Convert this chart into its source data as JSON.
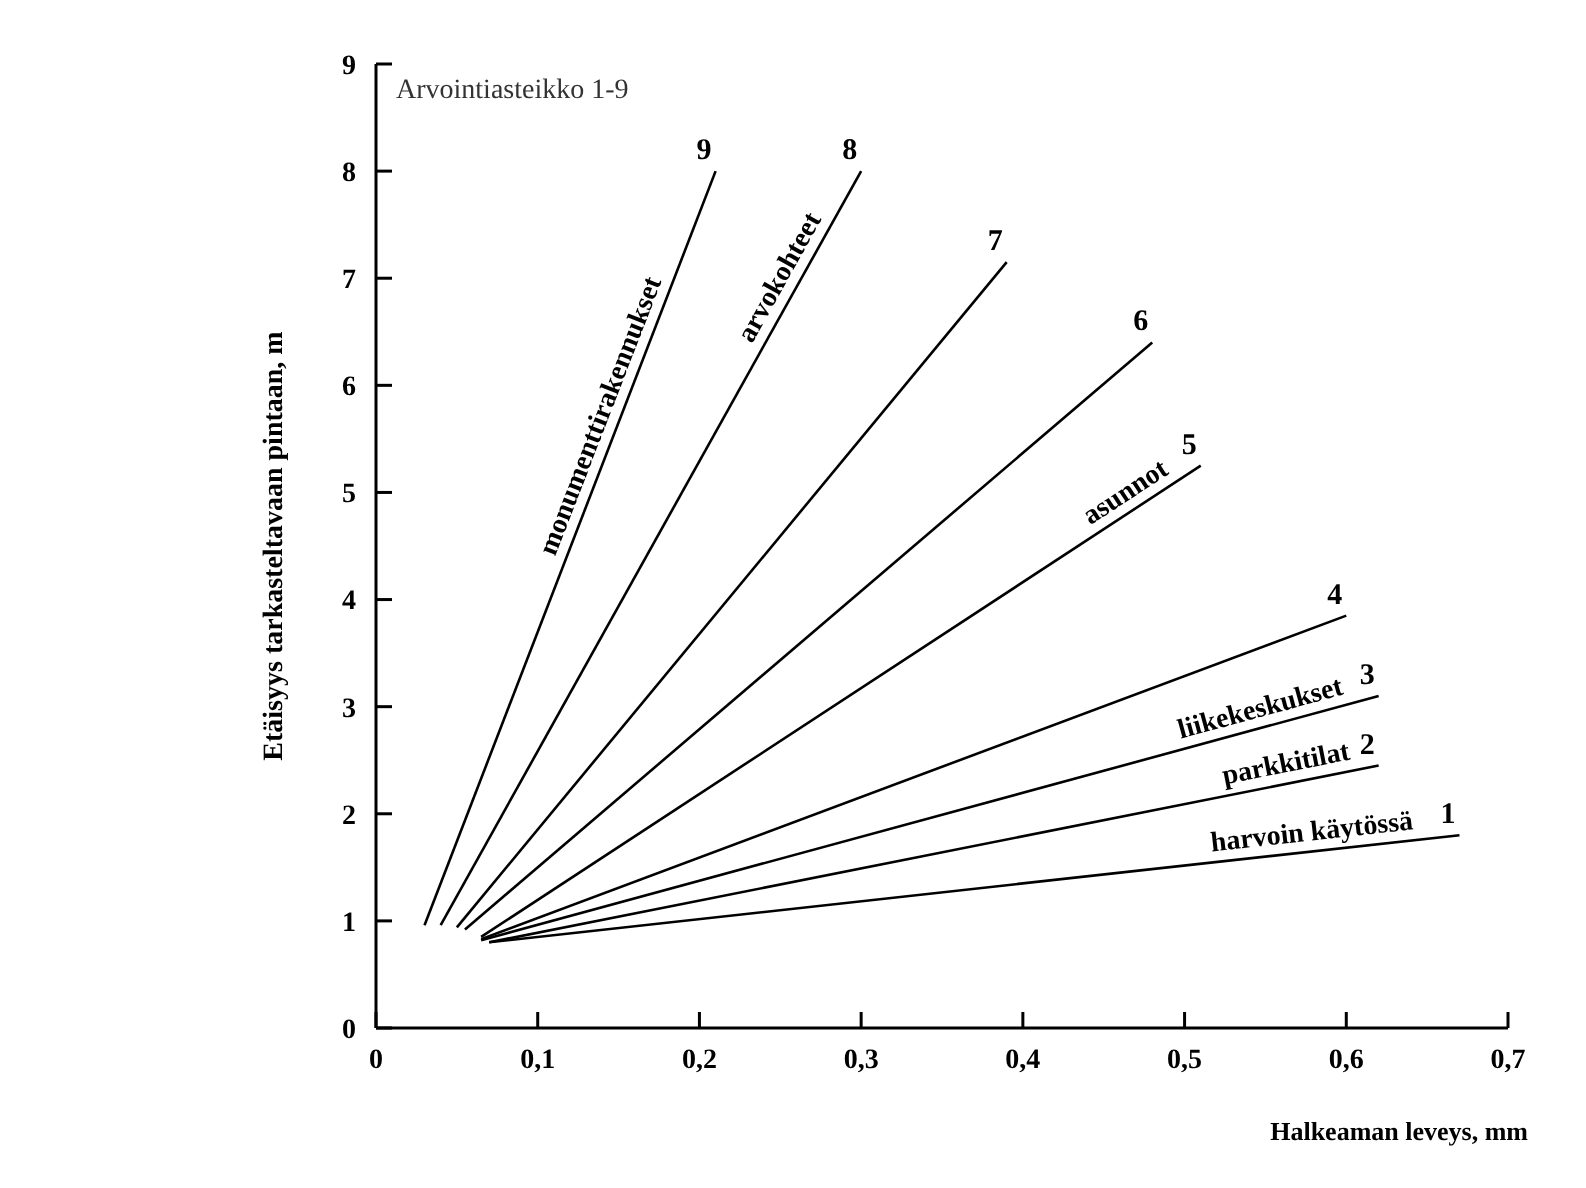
{
  "chart_data": {
    "type": "line",
    "xlabel": "Halkeaman leveys, mm",
    "ylabel": "Etäisyys tarkasteltavaan pintaan, m",
    "xlim": [
      0,
      0.7
    ],
    "ylim": [
      0,
      9
    ],
    "xticks": [
      0,
      {
        "value": 0.1,
        "label": "0,1"
      },
      {
        "value": 0.2,
        "label": "0,2"
      },
      {
        "value": 0.3,
        "label": "0,3"
      },
      {
        "value": 0.4,
        "label": "0,4"
      },
      {
        "value": 0.5,
        "label": "0,5"
      },
      {
        "value": 0.6,
        "label": "0,6"
      },
      {
        "value": 0.7,
        "label": "0,7"
      }
    ],
    "yticks": [
      0,
      1,
      2,
      3,
      4,
      5,
      6,
      7,
      8,
      9
    ],
    "grid": false,
    "legend": false,
    "marker": "none",
    "line_style": "solid",
    "series": [
      {
        "name": "9",
        "color": "#000000",
        "x": [
          0.03,
          0.21
        ],
        "values": [
          0.96,
          8.0
        ]
      },
      {
        "name": "8",
        "color": "#000000",
        "x": [
          0.04,
          0.3
        ],
        "values": [
          0.96,
          8.0
        ]
      },
      {
        "name": "7",
        "color": "#000000",
        "x": [
          0.05,
          0.39
        ],
        "values": [
          0.94,
          7.15
        ]
      },
      {
        "name": "6",
        "color": "#000000",
        "x": [
          0.055,
          0.48
        ],
        "values": [
          0.92,
          6.4
        ]
      },
      {
        "name": "5",
        "color": "#000000",
        "x": [
          0.065,
          0.51
        ],
        "values": [
          0.85,
          5.25
        ]
      },
      {
        "name": "4",
        "color": "#000000",
        "x": [
          0.065,
          0.6
        ],
        "values": [
          0.83,
          3.85
        ]
      },
      {
        "name": "3",
        "color": "#000000",
        "x": [
          0.065,
          0.62
        ],
        "values": [
          0.82,
          3.1
        ]
      },
      {
        "name": "2",
        "color": "#000000",
        "x": [
          0.07,
          0.62
        ],
        "values": [
          0.8,
          2.45
        ]
      },
      {
        "name": "1",
        "color": "#000000",
        "x": [
          0.07,
          0.67
        ],
        "values": [
          0.8,
          1.8
        ]
      }
    ],
    "annotations": [
      "Arvointiasteikko 1-9",
      {
        "text": "monumenttirakennukset",
        "x": 0.15,
        "y": 5.65
      },
      {
        "text": "arvokohteet",
        "x": 0.26,
        "y": 6.92
      },
      {
        "text": "asunnot",
        "x": 0.47,
        "y": 4.85
      },
      {
        "text": "liikekeskukset",
        "x": 0.55,
        "y": 2.81
      },
      {
        "text": "parkkitilat",
        "x": 0.565,
        "y": 2.29
      },
      {
        "text": "harvoin käytössä",
        "x": 0.58,
        "y": 1.65
      }
    ]
  }
}
